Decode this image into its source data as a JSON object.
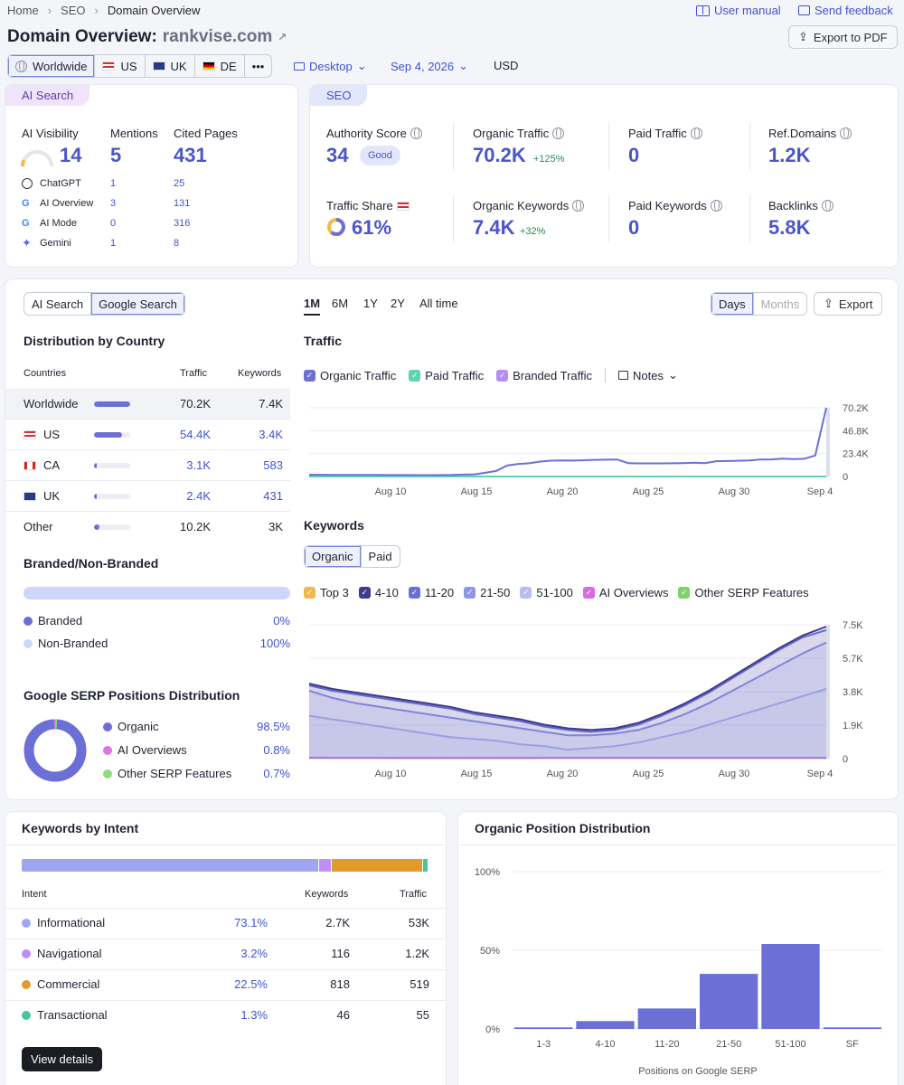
{
  "breadcrumb": [
    "Home",
    "SEO",
    "Domain Overview"
  ],
  "header_links": {
    "user_manual": "User manual",
    "send_feedback": "Send feedback"
  },
  "title": {
    "prefix": "Domain Overview:",
    "domain": "rankvise.com"
  },
  "export_pdf": "Export to PDF",
  "filters": {
    "regions": [
      "Worldwide",
      "US",
      "UK",
      "DE"
    ],
    "more": "•••",
    "device": "Desktop",
    "date": "Sep 4, 2026",
    "currency": "USD"
  },
  "ai_search": {
    "tag": "AI Search",
    "headers": {
      "visibility": "AI Visibility",
      "mentions": "Mentions",
      "cited": "Cited Pages"
    },
    "totals": {
      "visibility": "14",
      "mentions": "5",
      "cited": "431"
    },
    "visibility_level": 0.14,
    "rows": [
      {
        "name": "ChatGPT",
        "mentions": "1",
        "cited": "25"
      },
      {
        "name": "AI Overview",
        "mentions": "3",
        "cited": "131"
      },
      {
        "name": "AI Mode",
        "mentions": "0",
        "cited": "316"
      },
      {
        "name": "Gemini",
        "mentions": "1",
        "cited": "8"
      }
    ]
  },
  "seo": {
    "tag": "SEO",
    "authority": {
      "label": "Authority Score",
      "value": "34",
      "badge": "Good"
    },
    "organic_traffic": {
      "label": "Organic Traffic",
      "value": "70.2K",
      "delta": "+125%"
    },
    "paid_traffic": {
      "label": "Paid Traffic",
      "value": "0"
    },
    "ref_domains": {
      "label": "Ref.Domains",
      "value": "1.2K"
    },
    "traffic_share": {
      "label": "Traffic Share",
      "value": "61%"
    },
    "organic_keywords": {
      "label": "Organic Keywords",
      "value": "7.4K",
      "delta": "+32%"
    },
    "paid_keywords": {
      "label": "Paid Keywords",
      "value": "0"
    },
    "backlinks": {
      "label": "Backlinks",
      "value": "5.8K"
    }
  },
  "main": {
    "source_tabs": [
      "AI Search",
      "Google Search"
    ],
    "periods": [
      "1M",
      "6M",
      "1Y",
      "2Y",
      "All time"
    ],
    "granularity": [
      "Days",
      "Months"
    ],
    "export": "Export",
    "distribution": {
      "title": "Distribution by Country",
      "headers": [
        "Countries",
        "Traffic",
        "Keywords"
      ],
      "rows": [
        {
          "country": "Worldwide",
          "traffic": "70.2K",
          "keywords": "7.4K",
          "share": 1.0
        },
        {
          "country": "US",
          "traffic": "54.4K",
          "keywords": "3.4K",
          "share": 0.775
        },
        {
          "country": "CA",
          "traffic": "3.1K",
          "keywords": "583",
          "share": 0.044
        },
        {
          "country": "UK",
          "traffic": "2.4K",
          "keywords": "431",
          "share": 0.034
        },
        {
          "country": "Other",
          "traffic": "10.2K",
          "keywords": "3K",
          "share": 0.145
        }
      ]
    },
    "branded": {
      "title": "Branded/Non-Branded",
      "rows": [
        {
          "label": "Branded",
          "value": "0%",
          "color": "#6b6fd6"
        },
        {
          "label": "Non-Branded",
          "value": "100%",
          "color": "#cfd6fa"
        }
      ]
    },
    "serp": {
      "title": "Google SERP Positions Distribution",
      "rows": [
        {
          "label": "Organic",
          "value": "98.5%",
          "color": "#6b6fd6"
        },
        {
          "label": "AI Overviews",
          "value": "0.8%",
          "color": "#e073e3"
        },
        {
          "label": "Other SERP Features",
          "value": "0.7%",
          "color": "#8fdc7f"
        }
      ]
    },
    "traffic_title": "Traffic",
    "traffic_legend": [
      {
        "label": "Organic Traffic",
        "color": "#6b6fd6"
      },
      {
        "label": "Paid Traffic",
        "color": "#5fd3b0"
      },
      {
        "label": "Branded Traffic",
        "color": "#b88cf0"
      }
    ],
    "notes": "Notes",
    "keywords_title": "Keywords",
    "keyword_tabs": [
      "Organic",
      "Paid"
    ],
    "keywords_legend": [
      {
        "label": "Top 3",
        "color": "#f2b84b"
      },
      {
        "label": "4-10",
        "color": "#3e3a8c"
      },
      {
        "label": "11-20",
        "color": "#6b6fd6"
      },
      {
        "label": "21-50",
        "color": "#8f95e6"
      },
      {
        "label": "51-100",
        "color": "#b7bdf3"
      },
      {
        "label": "AI Overviews",
        "color": "#d96be0"
      },
      {
        "label": "Other SERP Features",
        "color": "#7fd26b"
      }
    ]
  },
  "intent": {
    "title": "Keywords by Intent",
    "headers": [
      "Intent",
      "Keywords",
      "Traffic"
    ],
    "rows": [
      {
        "intent": "Informational",
        "pct": "73.1%",
        "keywords": "2.7K",
        "traffic": "53K",
        "color": "#9ea6ef",
        "share": 0.731
      },
      {
        "intent": "Navigational",
        "pct": "3.2%",
        "keywords": "116",
        "traffic": "1.2K",
        "color": "#c08ef5",
        "share": 0.032
      },
      {
        "intent": "Commercial",
        "pct": "22.5%",
        "keywords": "818",
        "traffic": "519",
        "color": "#e19b2a",
        "share": 0.225
      },
      {
        "intent": "Transactional",
        "pct": "1.3%",
        "keywords": "46",
        "traffic": "55",
        "color": "#49c59a",
        "share": 0.013
      }
    ],
    "view_details": "View details"
  },
  "position_title": "Organic Position Distribution",
  "chart_data": [
    {
      "type": "line",
      "name": "Traffic",
      "x_ticks": [
        "Aug 10",
        "Aug 15",
        "Aug 20",
        "Aug 25",
        "Aug 30",
        "Sep 4"
      ],
      "y_ticks": [
        "0",
        "23.4K",
        "46.8K",
        "70.2K"
      ],
      "ylim": [
        0,
        70200
      ],
      "series": [
        {
          "name": "Organic Traffic",
          "color": "#6b6fd6",
          "values": [
            1800,
            1800,
            1700,
            1700,
            1700,
            1600,
            1600,
            1500,
            1500,
            1500,
            1400,
            1400,
            1500,
            1600,
            1900,
            2200,
            3800,
            5600,
            11200,
            12800,
            13500,
            15200,
            16200,
            16400,
            16300,
            16600,
            17000,
            17200,
            17400,
            13600,
            13400,
            13400,
            13400,
            13500,
            13700,
            14000,
            13700,
            15600,
            15800,
            16100,
            16400,
            17400,
            17500,
            18300,
            17700,
            18100,
            21500,
            70200
          ]
        },
        {
          "name": "Paid Traffic",
          "color": "#5fd3b0",
          "values": [
            0,
            0,
            0,
            0,
            0,
            0,
            0,
            0,
            0,
            0,
            0,
            0,
            0,
            0,
            0,
            0,
            0,
            0,
            0,
            0,
            0,
            0,
            0,
            0,
            0,
            0,
            0,
            0,
            0,
            0,
            0,
            0,
            0,
            0,
            0,
            0,
            0,
            0,
            0,
            0,
            0,
            0,
            0,
            0,
            0,
            0,
            0,
            0
          ]
        },
        {
          "name": "Branded Traffic",
          "color": "#b88cf0",
          "values": [
            0,
            0,
            0,
            0,
            0,
            0,
            0,
            0,
            0,
            0,
            0,
            0,
            0,
            0,
            0,
            0,
            0,
            0,
            0,
            0,
            0,
            0,
            0,
            0,
            0,
            0,
            0,
            0,
            0,
            0,
            0,
            0,
            0,
            0,
            0,
            0,
            0,
            0,
            0,
            0,
            0,
            0,
            0,
            0,
            0,
            0,
            0,
            0
          ]
        }
      ]
    },
    {
      "type": "area",
      "name": "Keywords",
      "x_ticks": [
        "Aug 10",
        "Aug 15",
        "Aug 20",
        "Aug 25",
        "Aug 30",
        "Sep 4"
      ],
      "y_ticks": [
        "0",
        "1.9K",
        "3.8K",
        "5.7K",
        "7.5K"
      ],
      "ylim": [
        0,
        7500
      ],
      "series": [
        {
          "name": "4-10",
          "color": "#3e3a8c",
          "values": [
            4200,
            3900,
            3700,
            3500,
            3300,
            3100,
            2900,
            2600,
            2400,
            2200,
            1900,
            1700,
            1600,
            1700,
            2000,
            2500,
            3100,
            3800,
            4600,
            5400,
            6200,
            6900,
            7400
          ]
        },
        {
          "name": "11-20",
          "color": "#6b6fd6",
          "values": [
            4100,
            3800,
            3600,
            3400,
            3200,
            3000,
            2800,
            2500,
            2300,
            2100,
            1800,
            1600,
            1500,
            1600,
            1900,
            2400,
            3000,
            3700,
            4500,
            5300,
            6100,
            6800,
            7200
          ]
        },
        {
          "name": "21-50",
          "color": "#8f95e6",
          "values": [
            3800,
            3400,
            3100,
            2900,
            2700,
            2500,
            2300,
            2100,
            1900,
            1700,
            1500,
            1300,
            1300,
            1400,
            1600,
            2000,
            2500,
            3100,
            3800,
            4500,
            5200,
            5900,
            6500
          ]
        },
        {
          "name": "51-100",
          "color": "#b7bdf3",
          "values": [
            2400,
            2200,
            2000,
            1800,
            1600,
            1400,
            1200,
            1100,
            1000,
            800,
            700,
            500,
            600,
            700,
            900,
            1200,
            1500,
            1900,
            2300,
            2700,
            3100,
            3500,
            3900
          ]
        },
        {
          "name": "AI Overviews",
          "color": "#d96be0",
          "values": [
            50,
            40,
            40,
            40,
            30,
            30,
            30,
            30,
            30,
            30,
            40,
            40,
            40,
            40,
            40,
            40,
            40,
            40,
            40,
            40,
            40,
            40,
            40
          ]
        },
        {
          "name": "Other SERP Features",
          "color": "#7fd26b",
          "values": [
            40,
            40,
            40,
            30,
            30,
            30,
            30,
            30,
            30,
            30,
            30,
            30,
            30,
            30,
            30,
            30,
            30,
            30,
            30,
            30,
            30,
            30,
            30
          ]
        }
      ]
    },
    {
      "type": "bar",
      "name": "Organic Position Distribution",
      "categories": [
        "1-3",
        "4-10",
        "11-20",
        "21-50",
        "51-100",
        "SF"
      ],
      "values": [
        1,
        5,
        13,
        35,
        54,
        1
      ],
      "y_ticks": [
        "0%",
        "50%",
        "100%"
      ],
      "ylim": [
        0,
        100
      ],
      "xlabel": "Positions on Google SERP",
      "color": "#6b6fd6"
    }
  ]
}
